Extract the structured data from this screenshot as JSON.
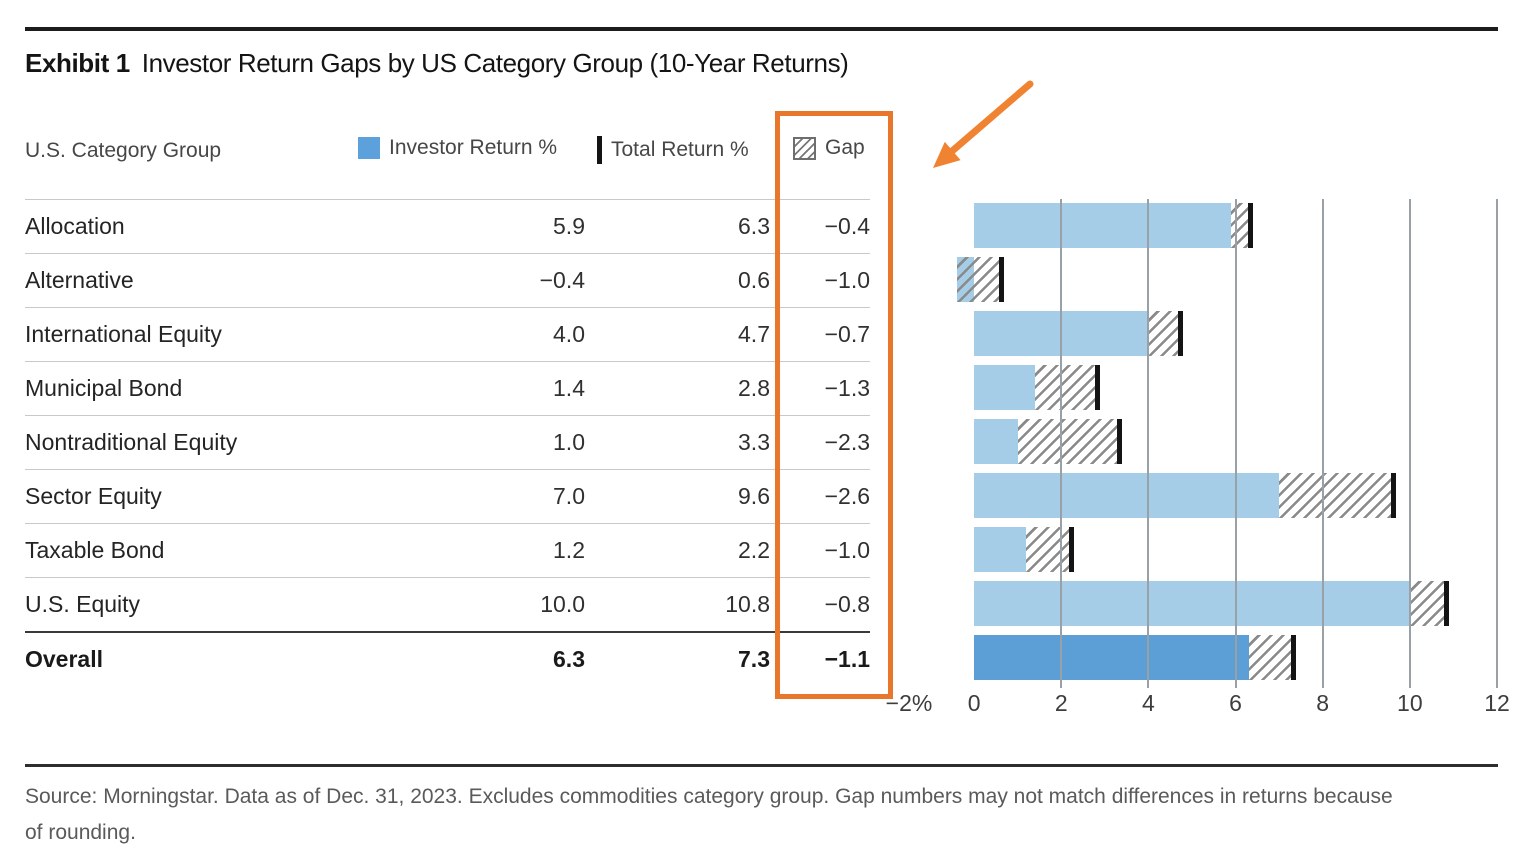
{
  "title": {
    "exhibit": "Exhibit 1",
    "text": "Investor Return Gaps by US Category Group (10-Year Returns)"
  },
  "header": {
    "category_col": "U.S. Category Group",
    "legend": [
      {
        "label": "Investor Return %",
        "swatch": "blue-square"
      },
      {
        "label": "Total Return %",
        "swatch": "black-tick"
      },
      {
        "label": "Gap",
        "swatch": "hatch-square"
      }
    ]
  },
  "table": {
    "rows": [
      {
        "label": "Allocation",
        "investor": "5.9",
        "total": "6.3",
        "gap": "−0.4"
      },
      {
        "label": "Alternative",
        "investor": "−0.4",
        "total": "0.6",
        "gap": "−1.0"
      },
      {
        "label": "International Equity",
        "investor": "4.0",
        "total": "4.7",
        "gap": "−0.7"
      },
      {
        "label": "Municipal Bond",
        "investor": "1.4",
        "total": "2.8",
        "gap": "−1.3"
      },
      {
        "label": "Nontraditional Equity",
        "investor": "1.0",
        "total": "3.3",
        "gap": "−2.3"
      },
      {
        "label": "Sector Equity",
        "investor": "7.0",
        "total": "9.6",
        "gap": "−2.6"
      },
      {
        "label": "Taxable Bond",
        "investor": "1.2",
        "total": "2.2",
        "gap": "−1.0"
      },
      {
        "label": "U.S. Equity",
        "investor": "10.0",
        "total": "10.8",
        "gap": "−0.8"
      }
    ],
    "overall": {
      "label": "Overall",
      "investor": "6.3",
      "total": "7.3",
      "gap": "−1.1"
    }
  },
  "chart_data": {
    "type": "bar",
    "orientation": "horizontal",
    "title": "Investor Return Gaps by US Category Group (10-Year Returns)",
    "categories": [
      "Allocation",
      "Alternative",
      "International Equity",
      "Municipal Bond",
      "Nontraditional Equity",
      "Sector Equity",
      "Taxable Bond",
      "U.S. Equity",
      "Overall"
    ],
    "series": [
      {
        "name": "Investor Return %",
        "values": [
          5.9,
          -0.4,
          4.0,
          1.4,
          1.0,
          7.0,
          1.2,
          10.0,
          6.3
        ]
      },
      {
        "name": "Total Return %",
        "values": [
          6.3,
          0.6,
          4.7,
          2.8,
          3.3,
          9.6,
          2.2,
          10.8,
          7.3
        ]
      },
      {
        "name": "Gap",
        "values": [
          -0.4,
          -1.0,
          -0.7,
          -1.3,
          -2.3,
          -2.6,
          -1.0,
          -0.8,
          -1.1
        ]
      }
    ],
    "xlim": [
      -2,
      12
    ],
    "xticks": [
      -2,
      0,
      2,
      4,
      6,
      8,
      10,
      12
    ],
    "xtick_labels": [
      "−2%",
      "0",
      "2",
      "4",
      "6",
      "8",
      "10",
      "12"
    ],
    "gridlines_at": [
      2,
      4,
      6,
      8,
      10,
      12
    ],
    "legend_position": "top",
    "grid": true,
    "highlighted_category": "Overall"
  },
  "footer": {
    "line1": "Source: Morningstar. Data as of Dec. 31, 2023. Excludes commodities category group. Gap numbers may not match differences in returns because",
    "line2": "of rounding."
  },
  "colors": {
    "accent_orange": "#E8772B",
    "arrow_orange": "#F08331",
    "bar_light_blue": "#A5CDE8",
    "bar_dark_blue": "#5B9FD6",
    "legend_blue": "#5DA1DC",
    "tick_black": "#141414",
    "gridline_gray": "#99A1A7",
    "hatch_gray": "#8A8A8A"
  }
}
